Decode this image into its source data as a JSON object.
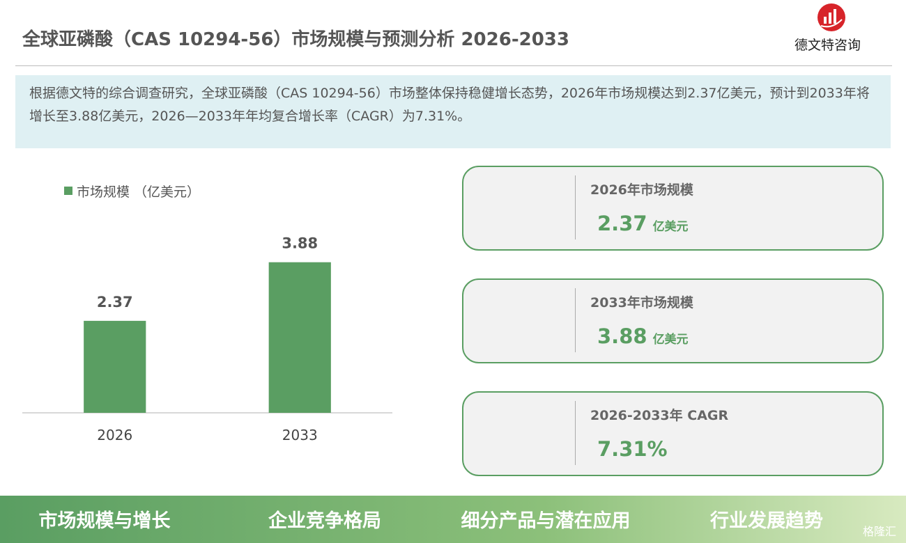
{
  "header": {
    "title": "全球亚磷酸（CAS 10294-56）市场规模与预测分析 2026-2033",
    "logo_text": "德文特咨询"
  },
  "summary": "根据德文特的综合调查研究，全球亚磷酸（CAS 10294-56）市场整体保持稳健增长态势，2026年市场规模达到2.37亿美元，预计到2033年将增长至3.88亿美元，2026—2033年年均复合增长率（CAGR）为7.31%。",
  "chart_data": {
    "type": "bar",
    "categories": [
      "2026",
      "2033"
    ],
    "series": [
      {
        "name": "市场规模 （亿美元）",
        "color": "#5a9e62",
        "values": [
          2.37,
          3.88
        ]
      }
    ],
    "ylim": [
      0,
      4
    ]
  },
  "cards": [
    {
      "label": "2026年市场规模",
      "value": "2.37",
      "unit": "亿美元"
    },
    {
      "label": "2033年市场规模",
      "value": "3.88",
      "unit": "亿美元"
    },
    {
      "label": "2026-2033年 CAGR",
      "value": "7.31%"
    }
  ],
  "footer_tabs": [
    "市场规模与增长",
    "企业竞争格局",
    "细分产品与潜在应用",
    "行业发展趋势"
  ],
  "watermark": "格隆汇"
}
